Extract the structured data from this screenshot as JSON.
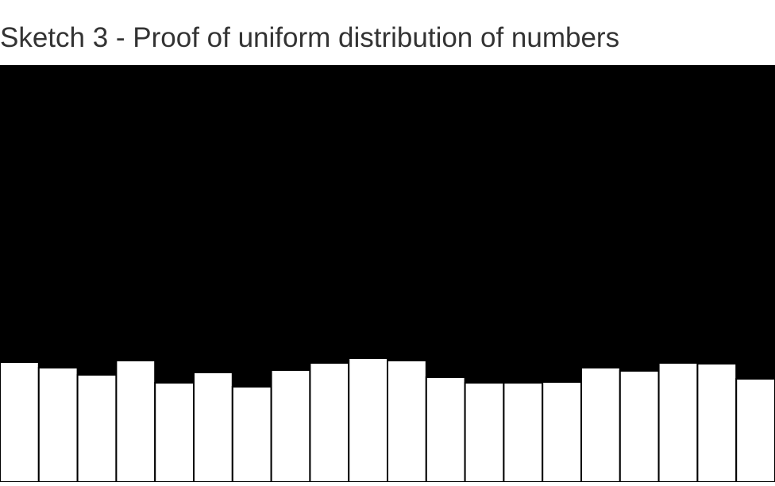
{
  "page": {
    "title": "Sketch 3 - Proof of uniform distribution of numbers"
  },
  "colors": {
    "canvas_background": "#000000",
    "bar_fill": "#ffffff",
    "bar_stroke": "#000000",
    "title_text": "#333333"
  },
  "chart_data": {
    "type": "bar",
    "title": "",
    "xlabel": "",
    "ylabel": "",
    "ylim": [
      0,
      525
    ],
    "grid": false,
    "legend": "none",
    "values": [
      151,
      144,
      135,
      153,
      125,
      138,
      120,
      141,
      150,
      156,
      153,
      132,
      125,
      125,
      126,
      144,
      140,
      150,
      149,
      130
    ]
  }
}
